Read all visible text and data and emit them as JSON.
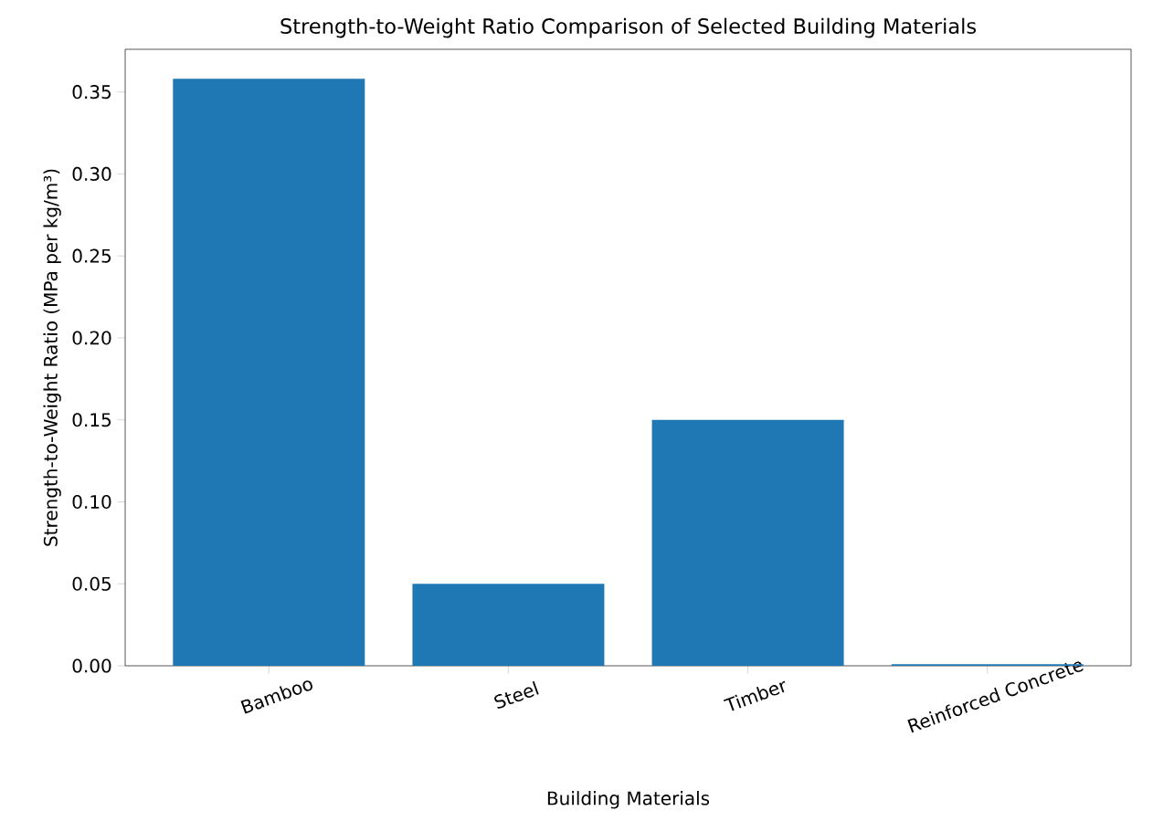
{
  "chart_data": {
    "type": "bar",
    "title": "Strength-to-Weight Ratio Comparison of Selected Building Materials",
    "xlabel": "Building Materials",
    "ylabel": "Strength-to-Weight Ratio (MPa per kg/m³)",
    "categories": [
      "Bamboo",
      "Steel",
      "Timber",
      "Reinforced Concrete"
    ],
    "values": [
      0.358,
      0.05,
      0.15,
      0.001
    ],
    "color": "#1f77b4",
    "ylim": [
      0,
      0.376
    ],
    "yticks": [
      {
        "value": 0,
        "label": "0.00"
      },
      {
        "value": 0.05,
        "label": "0.05"
      },
      {
        "value": 0.1,
        "label": "0.10"
      },
      {
        "value": 0.15,
        "label": "0.15"
      },
      {
        "value": 0.2,
        "label": "0.20"
      },
      {
        "value": 0.25,
        "label": "0.25"
      },
      {
        "value": 0.3,
        "label": "0.30"
      },
      {
        "value": 0.35,
        "label": "0.35"
      }
    ],
    "grid": false
  }
}
